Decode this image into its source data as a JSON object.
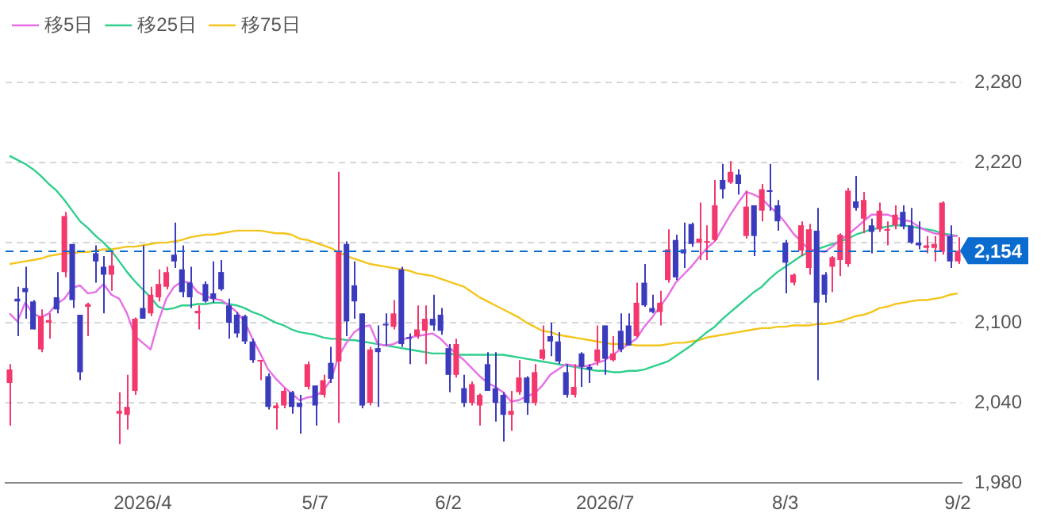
{
  "chart_data": {
    "type": "candlestick",
    "categories": [
      null,
      null,
      null,
      null,
      null,
      null,
      null,
      null,
      null,
      null,
      null,
      null,
      null,
      null,
      null,
      null,
      null,
      "2026/4",
      null,
      null,
      null,
      null,
      null,
      null,
      null,
      null,
      null,
      null,
      null,
      null,
      null,
      null,
      null,
      null,
      null,
      null,
      null,
      null,
      null,
      "5/7",
      null,
      null,
      null,
      null,
      null,
      null,
      null,
      null,
      null,
      null,
      null,
      null,
      null,
      null,
      null,
      null,
      "6/2",
      null,
      null,
      null,
      null,
      null,
      null,
      null,
      null,
      null,
      null,
      null,
      null,
      null,
      null,
      null,
      null,
      null,
      null,
      null,
      "2026/7",
      null,
      null,
      null,
      null,
      null,
      null,
      null,
      null,
      null,
      null,
      null,
      null,
      null,
      null,
      null,
      null,
      null,
      null,
      null,
      null,
      null,
      null,
      "8/3",
      null,
      null,
      null,
      null,
      null,
      null,
      null,
      null,
      null,
      null,
      null,
      null,
      null,
      null,
      null,
      null,
      null,
      null,
      null,
      null,
      null,
      "9/2"
    ],
    "ohlc": [
      [
        2055,
        2069,
        2023,
        2065
      ],
      [
        2118,
        2127,
        2090,
        2116
      ],
      [
        2126,
        2142,
        2103,
        2123
      ],
      [
        2116,
        2117,
        2095,
        2095
      ],
      [
        2080,
        2110,
        2078,
        2105
      ],
      [
        2100,
        2107,
        2088,
        2102
      ],
      [
        2119,
        2138,
        2107,
        2110
      ],
      [
        2138,
        2183,
        2134,
        2180
      ],
      [
        2159,
        2159,
        2111,
        2117
      ],
      [
        2106,
        2106,
        2057,
        2063
      ],
      [
        2112,
        2115,
        2090,
        2114
      ],
      [
        2152,
        2158,
        2130,
        2146
      ],
      [
        2142,
        2150,
        2107,
        2136
      ],
      [
        2136,
        2153,
        2124,
        2143
      ],
      [
        2032,
        2048,
        2009,
        2034
      ],
      [
        2031,
        2061,
        2020,
        2037
      ],
      [
        2049,
        2104,
        2046,
        2103
      ],
      [
        2111,
        2158,
        2103,
        2103
      ],
      [
        2107,
        2127,
        2105,
        2121
      ],
      [
        2119,
        2140,
        2116,
        2129
      ],
      [
        2127,
        2142,
        2125,
        2138
      ],
      [
        2151,
        2175,
        2141,
        2146
      ],
      [
        2140,
        2158,
        2119,
        2123
      ],
      [
        2130,
        2142,
        2111,
        2119
      ],
      [
        2107,
        2113,
        2095,
        2109
      ],
      [
        2129,
        2131,
        2115,
        2116
      ],
      [
        2122,
        2146,
        2115,
        2118
      ],
      [
        2138,
        2147,
        2124,
        2125
      ],
      [
        2113,
        2118,
        2088,
        2100
      ],
      [
        2106,
        2108,
        2089,
        2092
      ],
      [
        2105,
        2106,
        2084,
        2086
      ],
      [
        2086,
        2088,
        2070,
        2072
      ],
      [
        2071,
        2072,
        2057,
        2072
      ],
      [
        2060,
        2062,
        2035,
        2037
      ],
      [
        2036,
        2040,
        2020,
        2038
      ],
      [
        2038,
        2051,
        2036,
        2049
      ],
      [
        2048,
        2049,
        2032,
        2037
      ],
      [
        2040,
        2046,
        2017,
        2037
      ],
      [
        2052,
        2071,
        2050,
        2069
      ],
      [
        2053,
        2053,
        2023,
        2038
      ],
      [
        2046,
        2061,
        2044,
        2057
      ],
      [
        2070,
        2082,
        2055,
        2058
      ],
      [
        2071,
        2213,
        2025,
        2153
      ],
      [
        2159,
        2161,
        2090,
        2101
      ],
      [
        2128,
        2146,
        2103,
        2116
      ],
      [
        2107,
        2107,
        2036,
        2038
      ],
      [
        2040,
        2082,
        2038,
        2080
      ],
      [
        2081,
        2098,
        2037,
        2078
      ],
      [
        2099,
        2107,
        2083,
        2098
      ],
      [
        2097,
        2117,
        2095,
        2107
      ],
      [
        2140,
        2142,
        2082,
        2084
      ],
      [
        2089,
        2092,
        2069,
        2088
      ],
      [
        2090,
        2113,
        2088,
        2095
      ],
      [
        2094,
        2113,
        2069,
        2103
      ],
      [
        2103,
        2121,
        2094,
        2098
      ],
      [
        2106,
        2111,
        2091,
        2094
      ],
      [
        2081,
        2084,
        2048,
        2061
      ],
      [
        2061,
        2088,
        2059,
        2084
      ],
      [
        2051,
        2061,
        2037,
        2040
      ],
      [
        2040,
        2056,
        2038,
        2054
      ],
      [
        2038,
        2047,
        2023,
        2046
      ],
      [
        2069,
        2078,
        2049,
        2049
      ],
      [
        2051,
        2078,
        2026,
        2040
      ],
      [
        2046,
        2048,
        2011,
        2031
      ],
      [
        2031,
        2049,
        2019,
        2034
      ],
      [
        2048,
        2072,
        2046,
        2059
      ],
      [
        2059,
        2060,
        2031,
        2040
      ],
      [
        2040,
        2069,
        2038,
        2063
      ],
      [
        2073,
        2098,
        2072,
        2080
      ],
      [
        2090,
        2100,
        2075,
        2086
      ],
      [
        2086,
        2093,
        2069,
        2071
      ],
      [
        2063,
        2069,
        2044,
        2046
      ],
      [
        2046,
        2069,
        2044,
        2052
      ],
      [
        2077,
        2078,
        2052,
        2067
      ],
      [
        2067,
        2069,
        2055,
        2065
      ],
      [
        2071,
        2098,
        2068,
        2080
      ],
      [
        2098,
        2098,
        2061,
        2073
      ],
      [
        2072,
        2090,
        2071,
        2077
      ],
      [
        2094,
        2107,
        2078,
        2080
      ],
      [
        2098,
        2107,
        2083,
        2083
      ],
      [
        2090,
        2130,
        2089,
        2115
      ],
      [
        2130,
        2144,
        2112,
        2113
      ],
      [
        2111,
        2121,
        2107,
        2108
      ],
      [
        2108,
        2124,
        2098,
        2115
      ],
      [
        2132,
        2170,
        2130,
        2155
      ],
      [
        2162,
        2166,
        2132,
        2134
      ],
      [
        2155,
        2175,
        2141,
        2152
      ],
      [
        2174,
        2175,
        2157,
        2159
      ],
      [
        2160,
        2190,
        2147,
        2163
      ],
      [
        2160,
        2173,
        2147,
        2161
      ],
      [
        2162,
        2207,
        2161,
        2188
      ],
      [
        2207,
        2219,
        2193,
        2200
      ],
      [
        2205,
        2221,
        2204,
        2213
      ],
      [
        2211,
        2215,
        2196,
        2204
      ],
      [
        2165,
        2199,
        2163,
        2187
      ],
      [
        2188,
        2188,
        2150,
        2165
      ],
      [
        2184,
        2204,
        2176,
        2200
      ],
      [
        2199,
        2219,
        2184,
        2198
      ],
      [
        2188,
        2192,
        2169,
        2176
      ],
      [
        2160,
        2162,
        2122,
        2145
      ],
      [
        2130,
        2137,
        2128,
        2136
      ],
      [
        2154,
        2176,
        2150,
        2173
      ],
      [
        2141,
        2174,
        2136,
        2170
      ],
      [
        2169,
        2186,
        2057,
        2115
      ],
      [
        2136,
        2138,
        2115,
        2121
      ],
      [
        2142,
        2150,
        2123,
        2149
      ],
      [
        2147,
        2167,
        2135,
        2166
      ],
      [
        2144,
        2201,
        2142,
        2199
      ],
      [
        2191,
        2210,
        2184,
        2186
      ],
      [
        2178,
        2198,
        2167,
        2192
      ],
      [
        2173,
        2178,
        2152,
        2168
      ],
      [
        2170,
        2190,
        2168,
        2184
      ],
      [
        2169,
        2176,
        2158,
        2170
      ],
      [
        2173,
        2188,
        2170,
        2181
      ],
      [
        2183,
        2188,
        2170,
        2172
      ],
      [
        2173,
        2186,
        2159,
        2160
      ],
      [
        2160,
        2176,
        2155,
        2158
      ],
      [
        2156,
        2165,
        2152,
        2158
      ],
      [
        2156,
        2165,
        2146,
        2159
      ],
      [
        2153,
        2191,
        2151,
        2190
      ],
      [
        2165,
        2173,
        2141,
        2146
      ],
      [
        2146,
        2164,
        2144,
        2154
      ]
    ],
    "colors": [
      "#f2386c",
      "#3b3bbd",
      "#3b3bbd",
      "#3b3bbd",
      "#f2386c",
      "#f2386c",
      "#3b3bbd",
      "#f2386c",
      "#3b3bbd",
      "#3b3bbd",
      "#f2386c",
      "#3b3bbd",
      "#3b3bbd",
      "#f2386c",
      "#f2386c",
      "#f2386c",
      "#f2386c",
      "#3b3bbd",
      "#f2386c",
      "#f2386c",
      "#f2386c",
      "#3b3bbd",
      "#3b3bbd",
      "#3b3bbd",
      "#f2386c",
      "#3b3bbd",
      "#3b3bbd",
      "#3b3bbd",
      "#3b3bbd",
      "#3b3bbd",
      "#3b3bbd",
      "#3b3bbd",
      "#f2386c",
      "#3b3bbd",
      "#f2386c",
      "#f2386c",
      "#3b3bbd",
      "#3b3bbd",
      "#f2386c",
      "#3b3bbd",
      "#f2386c",
      "#3b3bbd",
      "#f2386c",
      "#3b3bbd",
      "#3b3bbd",
      "#3b3bbd",
      "#f2386c",
      "#3b3bbd",
      "#3b3bbd",
      "#f2386c",
      "#3b3bbd",
      "#3b3bbd",
      "#f2386c",
      "#f2386c",
      "#3b3bbd",
      "#3b3bbd",
      "#3b3bbd",
      "#f2386c",
      "#3b3bbd",
      "#f2386c",
      "#f2386c",
      "#3b3bbd",
      "#3b3bbd",
      "#3b3bbd",
      "#f2386c",
      "#f2386c",
      "#3b3bbd",
      "#f2386c",
      "#f2386c",
      "#3b3bbd",
      "#3b3bbd",
      "#3b3bbd",
      "#f2386c",
      "#3b3bbd",
      "#3b3bbd",
      "#f2386c",
      "#3b3bbd",
      "#f2386c",
      "#3b3bbd",
      "#3b3bbd",
      "#f2386c",
      "#3b3bbd",
      "#3b3bbd",
      "#f2386c",
      "#f2386c",
      "#3b3bbd",
      "#3b3bbd",
      "#3b3bbd",
      "#f2386c",
      "#f2386c",
      "#f2386c",
      "#3b3bbd",
      "#f2386c",
      "#3b3bbd",
      "#f2386c",
      "#3b3bbd",
      "#f2386c",
      "#3b3bbd",
      "#3b3bbd",
      "#3b3bbd",
      "#f2386c",
      "#f2386c",
      "#f2386c",
      "#3b3bbd",
      "#3b3bbd",
      "#f2386c",
      "#f2386c",
      "#f2386c",
      "#3b3bbd",
      "#f2386c",
      "#3b3bbd",
      "#f2386c",
      "#f2386c",
      "#f2386c",
      "#3b3bbd",
      "#3b3bbd",
      "#3b3bbd",
      "#f2386c",
      "#f2386c",
      "#f2386c",
      "#3b3bbd",
      "#f2386c"
    ],
    "series": [
      {
        "name": "移5日",
        "type": "line",
        "color": "#e76ee6",
        "values": [
          2107,
          2101,
          2115,
          2107,
          2104,
          2107,
          2114,
          2118,
          2126,
          2128,
          2122,
          2123,
          2129,
          2121,
          2118,
          2107,
          2090,
          2085,
          2080,
          2101,
          2118,
          2127,
          2131,
          2130,
          2123,
          2120,
          2118,
          2117,
          2113,
          2108,
          2101,
          2088,
          2077,
          2065,
          2058,
          2052,
          2047,
          2042,
          2044,
          2045,
          2049,
          2057,
          2075,
          2085,
          2093,
          2097,
          2098,
          2084,
          2083,
          2084,
          2087,
          2089,
          2090,
          2091,
          2092,
          2088,
          2082,
          2077,
          2072,
          2066,
          2060,
          2055,
          2052,
          2048,
          2041,
          2042,
          2045,
          2047,
          2053,
          2061,
          2065,
          2069,
          2068,
          2067,
          2068,
          2070,
          2072,
          2076,
          2080,
          2084,
          2088,
          2097,
          2104,
          2112,
          2120,
          2130,
          2136,
          2142,
          2149,
          2156,
          2161,
          2171,
          2181,
          2190,
          2198,
          2196,
          2193,
          2187,
          2182,
          2175,
          2167,
          2161,
          2155,
          2154,
          2153,
          2157,
          2162,
          2166,
          2171,
          2176,
          2181,
          2181,
          2181,
          2179,
          2177,
          2176,
          2172,
          2169,
          2167,
          2166,
          2165,
          2165
        ]
      },
      {
        "name": "移25日",
        "type": "line",
        "color": "#2fcf8c",
        "values": [
          2225,
          2222,
          2219,
          2215,
          2210,
          2204,
          2199,
          2192,
          2184,
          2176,
          2171,
          2165,
          2160,
          2154,
          2146,
          2138,
          2131,
          2125,
          2119,
          2112,
          2110,
          2111,
          2113,
          2113,
          2114,
          2114,
          2115,
          2115,
          2114,
          2113,
          2111,
          2108,
          2106,
          2103,
          2100,
          2098,
          2095,
          2093,
          2092,
          2091,
          2089,
          2088,
          2088,
          2087,
          2087,
          2086,
          2085,
          2084,
          2083,
          2082,
          2081,
          2080,
          2079,
          2078,
          2077,
          2077,
          2077,
          2076,
          2076,
          2076,
          2076,
          2076,
          2076,
          2076,
          2075,
          2074,
          2073,
          2072,
          2071,
          2070,
          2069,
          2068,
          2067,
          2066,
          2065,
          2064,
          2064,
          2063,
          2063,
          2064,
          2064,
          2065,
          2067,
          2069,
          2071,
          2075,
          2079,
          2083,
          2088,
          2093,
          2097,
          2103,
          2108,
          2113,
          2118,
          2123,
          2127,
          2133,
          2138,
          2142,
          2146,
          2150,
          2153,
          2155,
          2157,
          2159,
          2161,
          2163,
          2166,
          2168,
          2170,
          2171,
          2172,
          2173,
          2173,
          2172,
          2171,
          2170,
          2169,
          2167,
          2166,
          2165
        ]
      },
      {
        "name": "移75日",
        "type": "line",
        "color": "#f4c51c",
        "values": [
          2144,
          2145,
          2146,
          2147,
          2148,
          2150,
          2151,
          2152,
          2152,
          2153,
          2153,
          2154,
          2155,
          2155,
          2156,
          2157,
          2157,
          2158,
          2159,
          2160,
          2160,
          2161,
          2162,
          2164,
          2165,
          2166,
          2166,
          2167,
          2168,
          2169,
          2169,
          2169,
          2169,
          2168,
          2167,
          2167,
          2166,
          2163,
          2162,
          2160,
          2158,
          2156,
          2153,
          2150,
          2148,
          2146,
          2144,
          2143,
          2142,
          2141,
          2140,
          2139,
          2137,
          2136,
          2135,
          2133,
          2131,
          2129,
          2127,
          2123,
          2119,
          2116,
          2113,
          2110,
          2107,
          2104,
          2100,
          2097,
          2094,
          2093,
          2091,
          2090,
          2089,
          2088,
          2087,
          2086,
          2085,
          2084,
          2084,
          2084,
          2083,
          2083,
          2083,
          2083,
          2084,
          2085,
          2085,
          2086,
          2087,
          2089,
          2090,
          2091,
          2092,
          2093,
          2094,
          2095,
          2096,
          2096,
          2097,
          2097,
          2098,
          2098,
          2098,
          2099,
          2099,
          2100,
          2101,
          2103,
          2105,
          2106,
          2108,
          2111,
          2112,
          2114,
          2115,
          2116,
          2117,
          2117,
          2118,
          2119,
          2121,
          2122
        ]
      }
    ],
    "ylim": [
      1980,
      2280
    ],
    "yticks": [
      {
        "value": 1980,
        "label": "1,980"
      },
      {
        "value": 2040,
        "label": "2,040"
      },
      {
        "value": 2100,
        "label": "2,100"
      },
      {
        "value": 2160,
        "label": null
      },
      {
        "value": 2220,
        "label": "2,220"
      },
      {
        "value": 2280,
        "label": "2,280"
      }
    ],
    "grid": "y",
    "legend": "top left",
    "ref_lines": [
      {
        "axis": "y",
        "value": 2154,
        "label": "2,154",
        "color": "#0b6bcf",
        "line_style": "dashed"
      }
    ]
  }
}
